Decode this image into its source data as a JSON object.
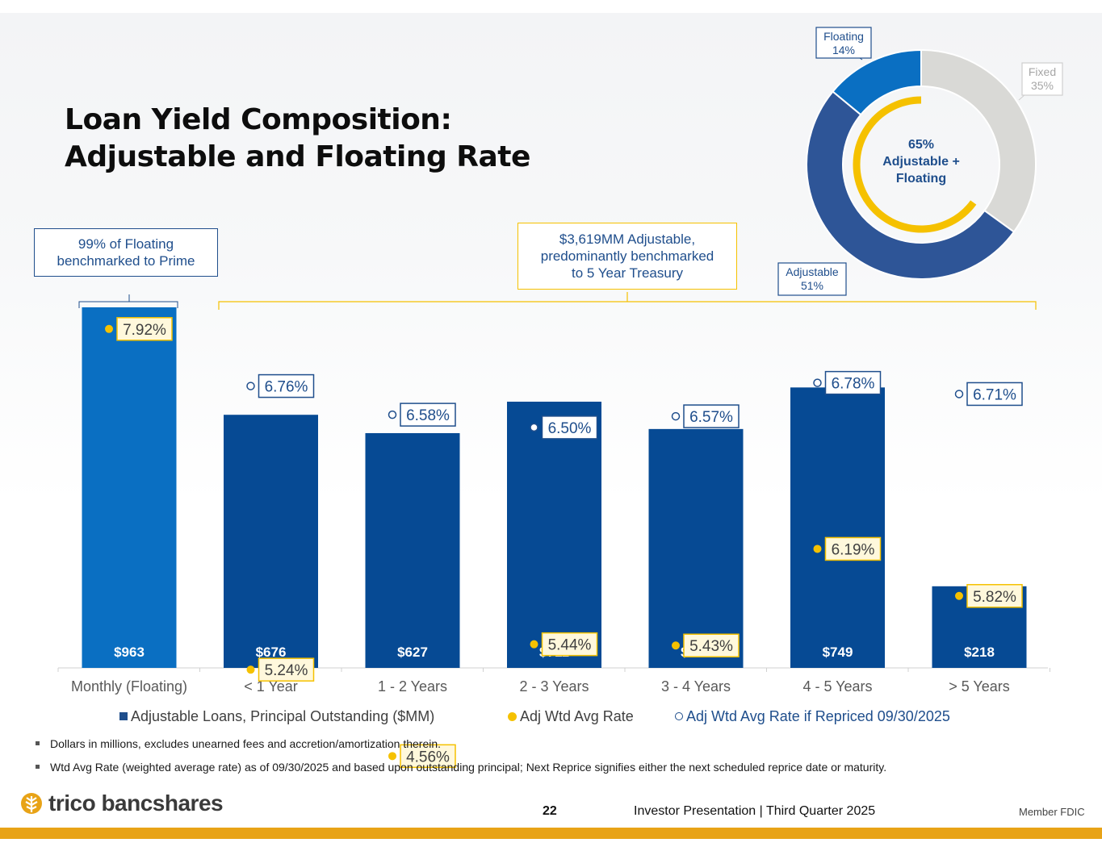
{
  "title_line1": "Loan Yield Composition:",
  "title_line2": "Adjustable and Floating Rate",
  "callouts": {
    "floating": "99% of Floating\nbenchmarked to Prime",
    "adjustable": "$3,619MM Adjustable,\npredominantly benchmarked\nto 5 Year Treasury"
  },
  "colors": {
    "floating_bar": "#0a6fc2",
    "adjustable_bar": "#064a94",
    "gold": "#f5c100",
    "navy": "#1f4e8c",
    "fixed_gray": "#d9d9d6",
    "adjustable_slice": "#2e5597",
    "floating_slice": "#0a6fc2"
  },
  "chart_data": [
    {
      "type": "bar",
      "categories": [
        "Monthly (Floating)",
        "< 1 Year",
        "1 - 2 Years",
        "2 - 3 Years",
        "3 - 4 Years",
        "4 - 5 Years",
        "> 5 Years"
      ],
      "series": [
        {
          "name": "Adjustable Loans, Principal Outstanding ($MM)",
          "values": [
            963,
            676,
            627,
            711,
            638,
            749,
            218
          ],
          "value_labels": [
            "$963",
            "$676",
            "$627",
            "$711",
            "$638",
            "$749",
            "$218"
          ]
        },
        {
          "name": "Adj Wtd Avg Rate",
          "values": [
            7.92,
            5.24,
            4.56,
            5.44,
            5.43,
            6.19,
            5.82
          ],
          "value_labels": [
            "7.92%",
            "5.24%",
            "4.56%",
            "5.44%",
            "5.43%",
            "6.19%",
            "5.82%"
          ]
        },
        {
          "name": "Adj Wtd Avg Rate if Repriced 09/30/2025",
          "values": [
            null,
            6.76,
            6.58,
            6.5,
            6.57,
            6.78,
            6.71
          ],
          "value_labels": [
            "",
            "6.76%",
            "6.58%",
            "6.50%",
            "6.57%",
            "6.78%",
            "6.71%"
          ]
        }
      ],
      "legend_position": "bottom",
      "grid": false
    },
    {
      "type": "pie",
      "labels": [
        "Fixed",
        "Adjustable",
        "Floating"
      ],
      "values": [
        35,
        51,
        14
      ],
      "value_labels": [
        "35%",
        "51%",
        "14%"
      ],
      "center_label": "65%\nAdjustable +\nFloating",
      "inner_arc_percent": 65
    }
  ],
  "legend": {
    "bars": "Adjustable Loans, Principal Outstanding ($MM)",
    "rate": "Adj Wtd Avg Rate",
    "repriced": "Adj Wtd Avg Rate if Repriced 09/30/2025"
  },
  "notes": [
    "Dollars in millions, excludes unearned fees and accretion/amortization therein.",
    "Wtd Avg Rate (weighted average rate) as of 09/30/2025 and based upon outstanding principal; Next Reprice signifies either the next scheduled reprice date or maturity."
  ],
  "footer": {
    "logo": "trico bancshares",
    "page_number": "22",
    "presentation": "Investor Presentation  |  Third Quarter 2025",
    "fdic": "Member FDIC"
  }
}
